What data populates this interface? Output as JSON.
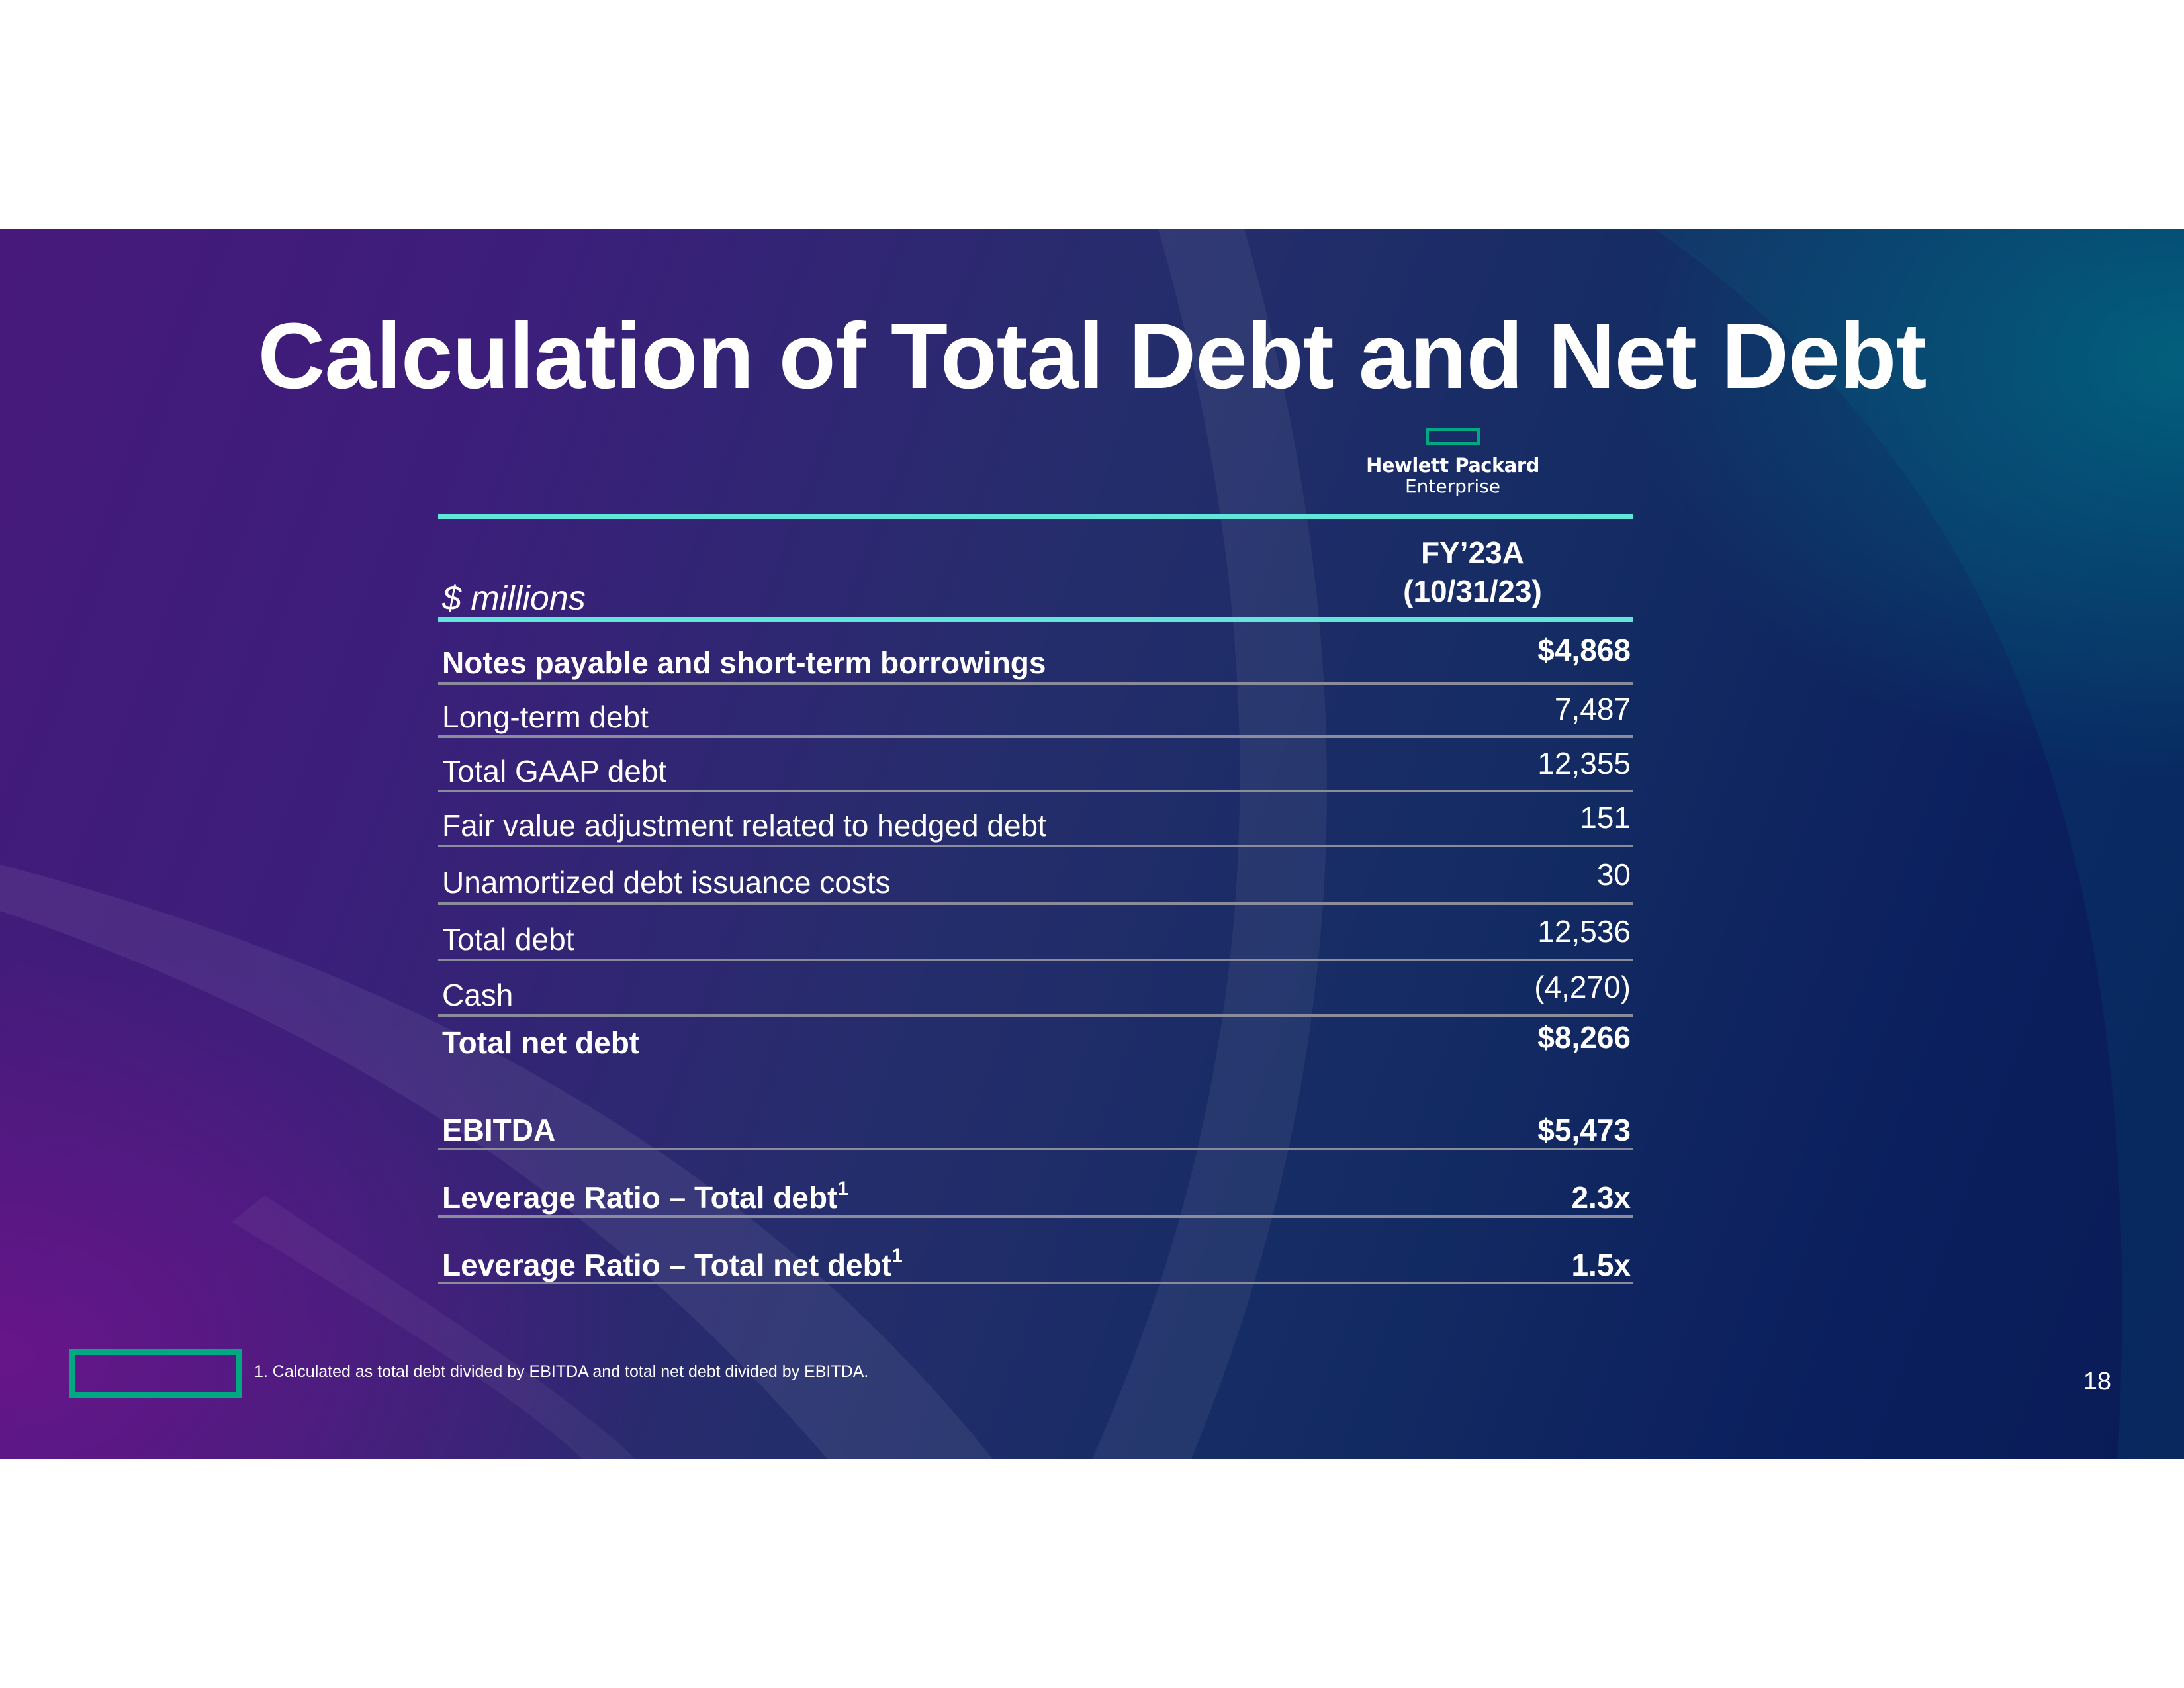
{
  "slide": {
    "title": "Calculation of Total Debt and Net Debt",
    "logo": {
      "line1": "Hewlett Packard",
      "line2": "Enterprise"
    },
    "table": {
      "unit_label": "$ millions",
      "column_header_line1": "FY’23A",
      "column_header_line2": "(10/31/23)",
      "rows": [
        {
          "label": "Notes payable and short-term borrowings",
          "value": "$4,868"
        },
        {
          "label": "Long-term debt",
          "value": "7,487"
        },
        {
          "label": "Total GAAP debt",
          "value": "12,355"
        },
        {
          "label": "Fair value adjustment related to hedged debt",
          "value": "151"
        },
        {
          "label": "Unamortized debt issuance costs",
          "value": "30"
        },
        {
          "label": "Total debt",
          "value": "12,536"
        },
        {
          "label": "Cash",
          "value": "(4,270)"
        },
        {
          "label": "Total net debt",
          "value": "$8,266"
        },
        {
          "label": "EBITDA",
          "value": "$5,473"
        },
        {
          "label": "Leverage Ratio – Total debt",
          "superscript": "1",
          "value": "2.3x"
        },
        {
          "label": "Leverage Ratio – Total net debt",
          "superscript": "1",
          "value": "1.5x"
        }
      ]
    },
    "footnote": "1. Calculated as total debt divided by EBITDA and total net debt divided by EBITDA.",
    "page_number": "18",
    "colors": {
      "brand_green": "#01a982",
      "accent_teal": "#62e5da",
      "background_purple": "#47197a",
      "background_navy": "#0a1c57"
    }
  }
}
